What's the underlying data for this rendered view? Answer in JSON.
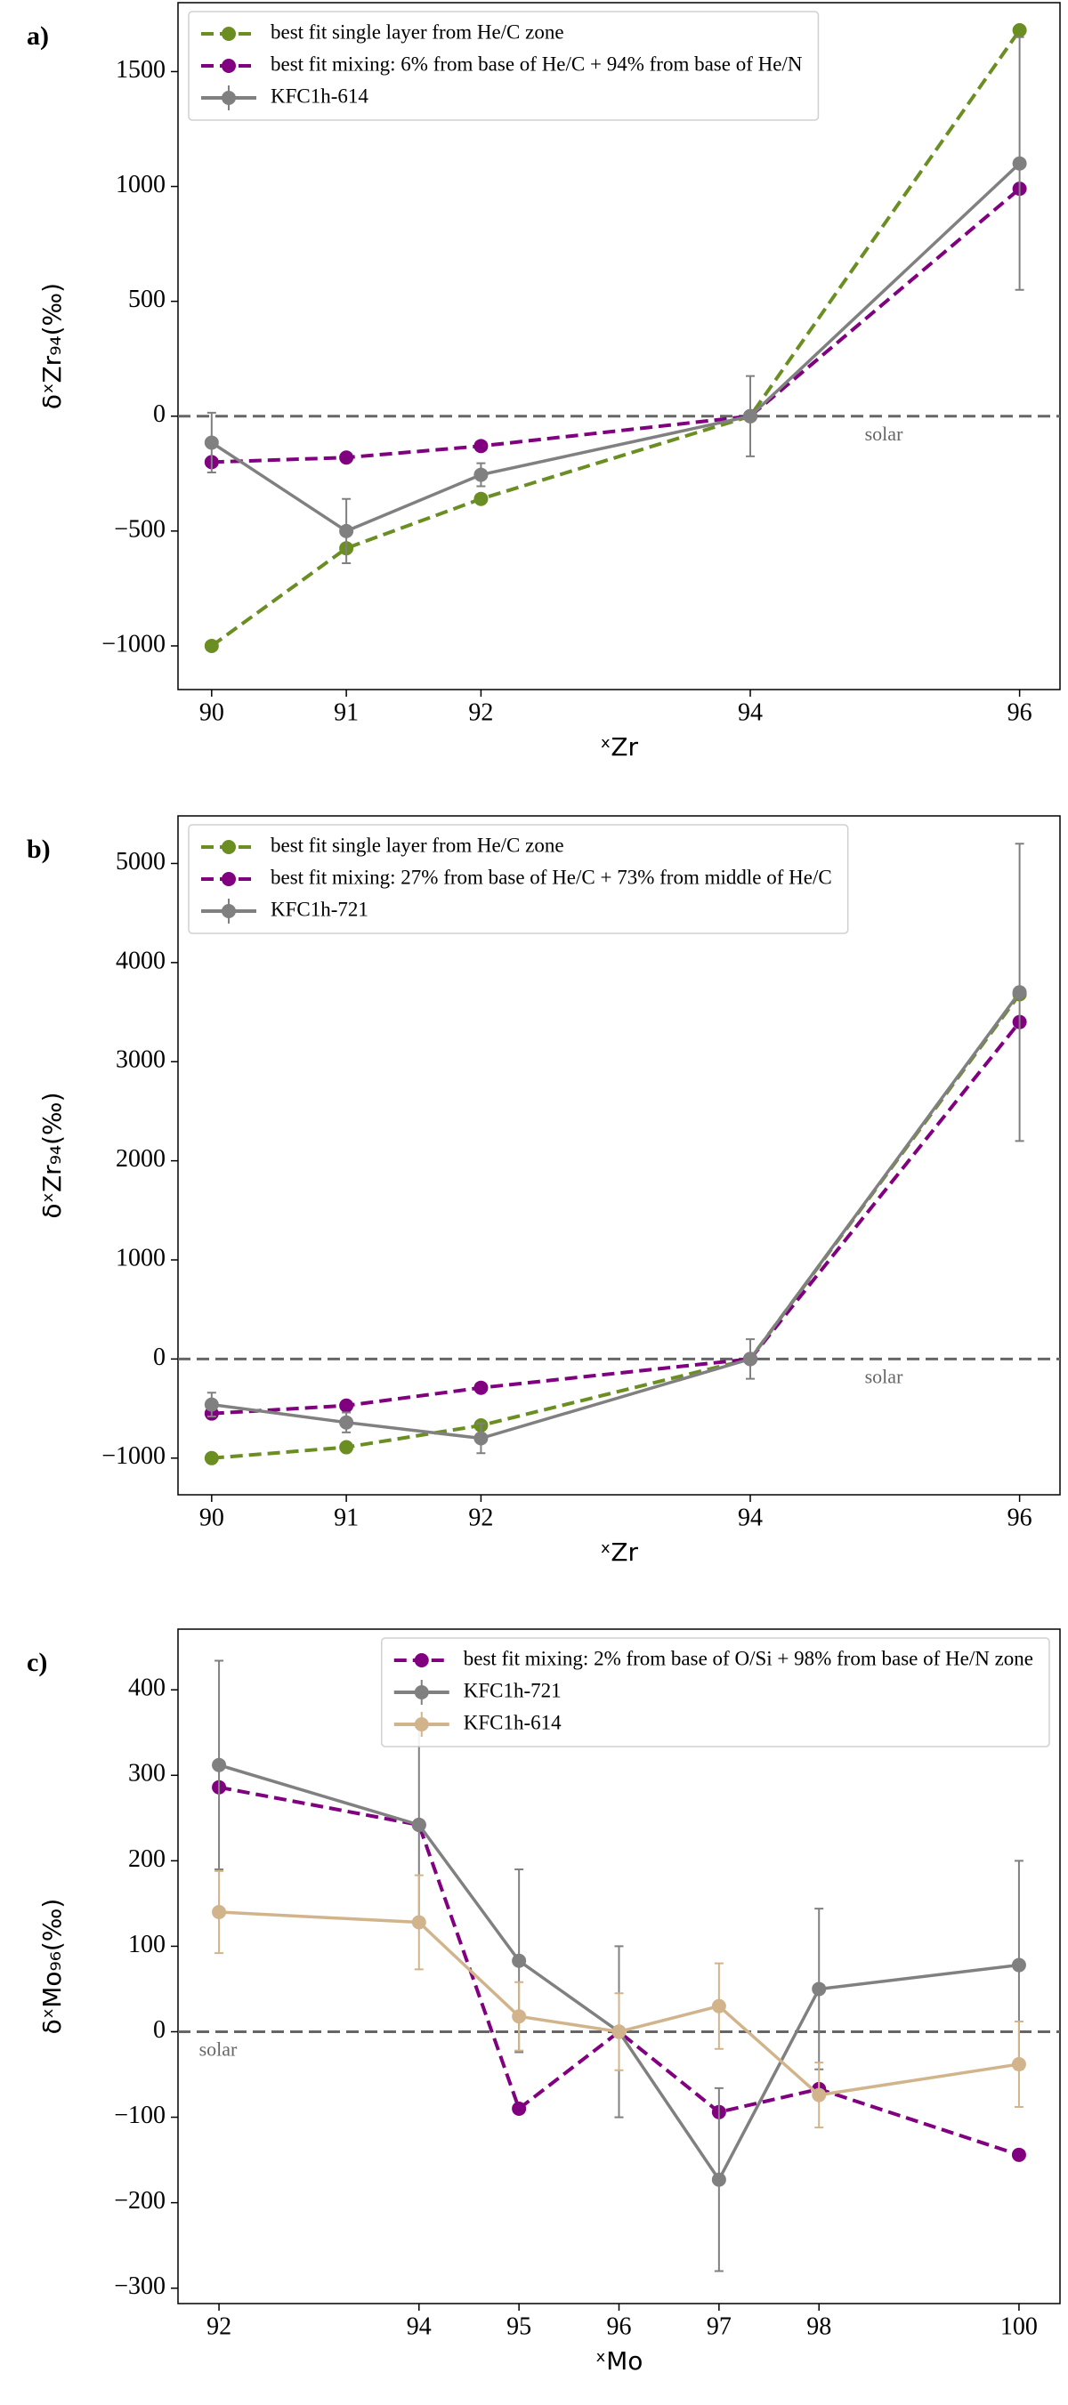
{
  "chart_data": [
    {
      "type": "line",
      "panel_label": "a)",
      "x_label": "ˣZr",
      "y_label": "δˣZr₉₄(‰)",
      "x": [
        90,
        91,
        92,
        94,
        96
      ],
      "xlim": [
        89.75,
        96.3
      ],
      "xticks": [
        90,
        91,
        92,
        94,
        96
      ],
      "ylim": [
        -1190,
        1800
      ],
      "yticks": [
        {
          "value": -1000,
          "label": "−1000"
        },
        {
          "value": -500,
          "label": "−500"
        },
        0,
        500,
        1000,
        1500
      ],
      "hline": 0,
      "annotation": "solar",
      "legend": "upper left",
      "series": [
        {
          "name": "best fit single layer from He/C zone",
          "color": "#6b8e23",
          "linestyle": "dashed",
          "values": [
            -1000,
            -575,
            -360,
            0,
            1680
          ]
        },
        {
          "name": "best fit mixing: 6% from base of He/C + 94% from base of He/N",
          "color": "#800080",
          "linestyle": "dashed",
          "values": [
            -200,
            -180,
            -130,
            0,
            990
          ]
        },
        {
          "name": "KFC1h-614",
          "color": "#808080",
          "linestyle": "solid",
          "values": [
            -115,
            -500,
            -255,
            0,
            1100
          ],
          "errors": [
            130,
            140,
            50,
            175,
            550
          ]
        }
      ]
    },
    {
      "type": "line",
      "panel_label": "b)",
      "x_label": "ˣZr",
      "y_label": "δˣZr₉₄(‰)",
      "x": [
        90,
        91,
        92,
        94,
        96
      ],
      "xlim": [
        89.75,
        96.3
      ],
      "xticks": [
        90,
        91,
        92,
        94,
        96
      ],
      "ylim": [
        -1370,
        5480
      ],
      "yticks": [
        {
          "value": -1000,
          "label": "−1000"
        },
        0,
        1000,
        2000,
        3000,
        4000,
        5000
      ],
      "hline": 0,
      "annotation": "solar",
      "legend": "upper left",
      "series": [
        {
          "name": "best fit single layer from He/C zone",
          "color": "#6b8e23",
          "linestyle": "dashed",
          "values": [
            -1000,
            -890,
            -670,
            0,
            3680
          ]
        },
        {
          "name": "best fit mixing: 27% from base of He/C + 73% from middle of He/C",
          "color": "#800080",
          "linestyle": "dashed",
          "values": [
            -550,
            -470,
            -290,
            0,
            3400
          ]
        },
        {
          "name": "KFC1h-721",
          "color": "#808080",
          "linestyle": "solid",
          "values": [
            -460,
            -640,
            -800,
            0,
            3700
          ],
          "errors": [
            120,
            100,
            150,
            200,
            1500
          ]
        }
      ]
    },
    {
      "type": "line",
      "panel_label": "c)",
      "x_label": "ˣMo",
      "y_label": "δˣMo₉₆(‰)",
      "x": [
        92,
        94,
        95,
        96,
        97,
        98,
        100
      ],
      "xlim": [
        91.59,
        100.41
      ],
      "xticks": [
        92,
        94,
        95,
        96,
        97,
        98,
        100
      ],
      "ylim": [
        -318,
        471
      ],
      "yticks": [
        {
          "value": -300,
          "label": "−300"
        },
        {
          "value": -200,
          "label": "−200"
        },
        {
          "value": -100,
          "label": "−100"
        },
        0,
        100,
        200,
        300,
        400
      ],
      "hline": 0,
      "annotation": "solar",
      "legend": "upper right",
      "series": [
        {
          "name": "best fit mixing: 2% from base of O/Si + 98% from base of He/N zone",
          "color": "#800080",
          "linestyle": "dashed",
          "values": [
            286,
            242,
            -90,
            0,
            -94,
            -67,
            -144
          ]
        },
        {
          "name": "KFC1h-721",
          "color": "#808080",
          "linestyle": "solid",
          "values": [
            312,
            242,
            83,
            0,
            -173,
            50,
            78
          ],
          "errors": [
            122,
            115,
            107,
            100,
            107,
            94,
            122
          ]
        },
        {
          "name": "KFC1h-614",
          "color": "#d2b48c",
          "linestyle": "solid",
          "values": [
            140,
            128,
            18,
            0,
            30,
            -74,
            -38
          ],
          "errors": [
            48,
            55,
            40,
            45,
            50,
            38,
            50
          ]
        }
      ]
    }
  ]
}
